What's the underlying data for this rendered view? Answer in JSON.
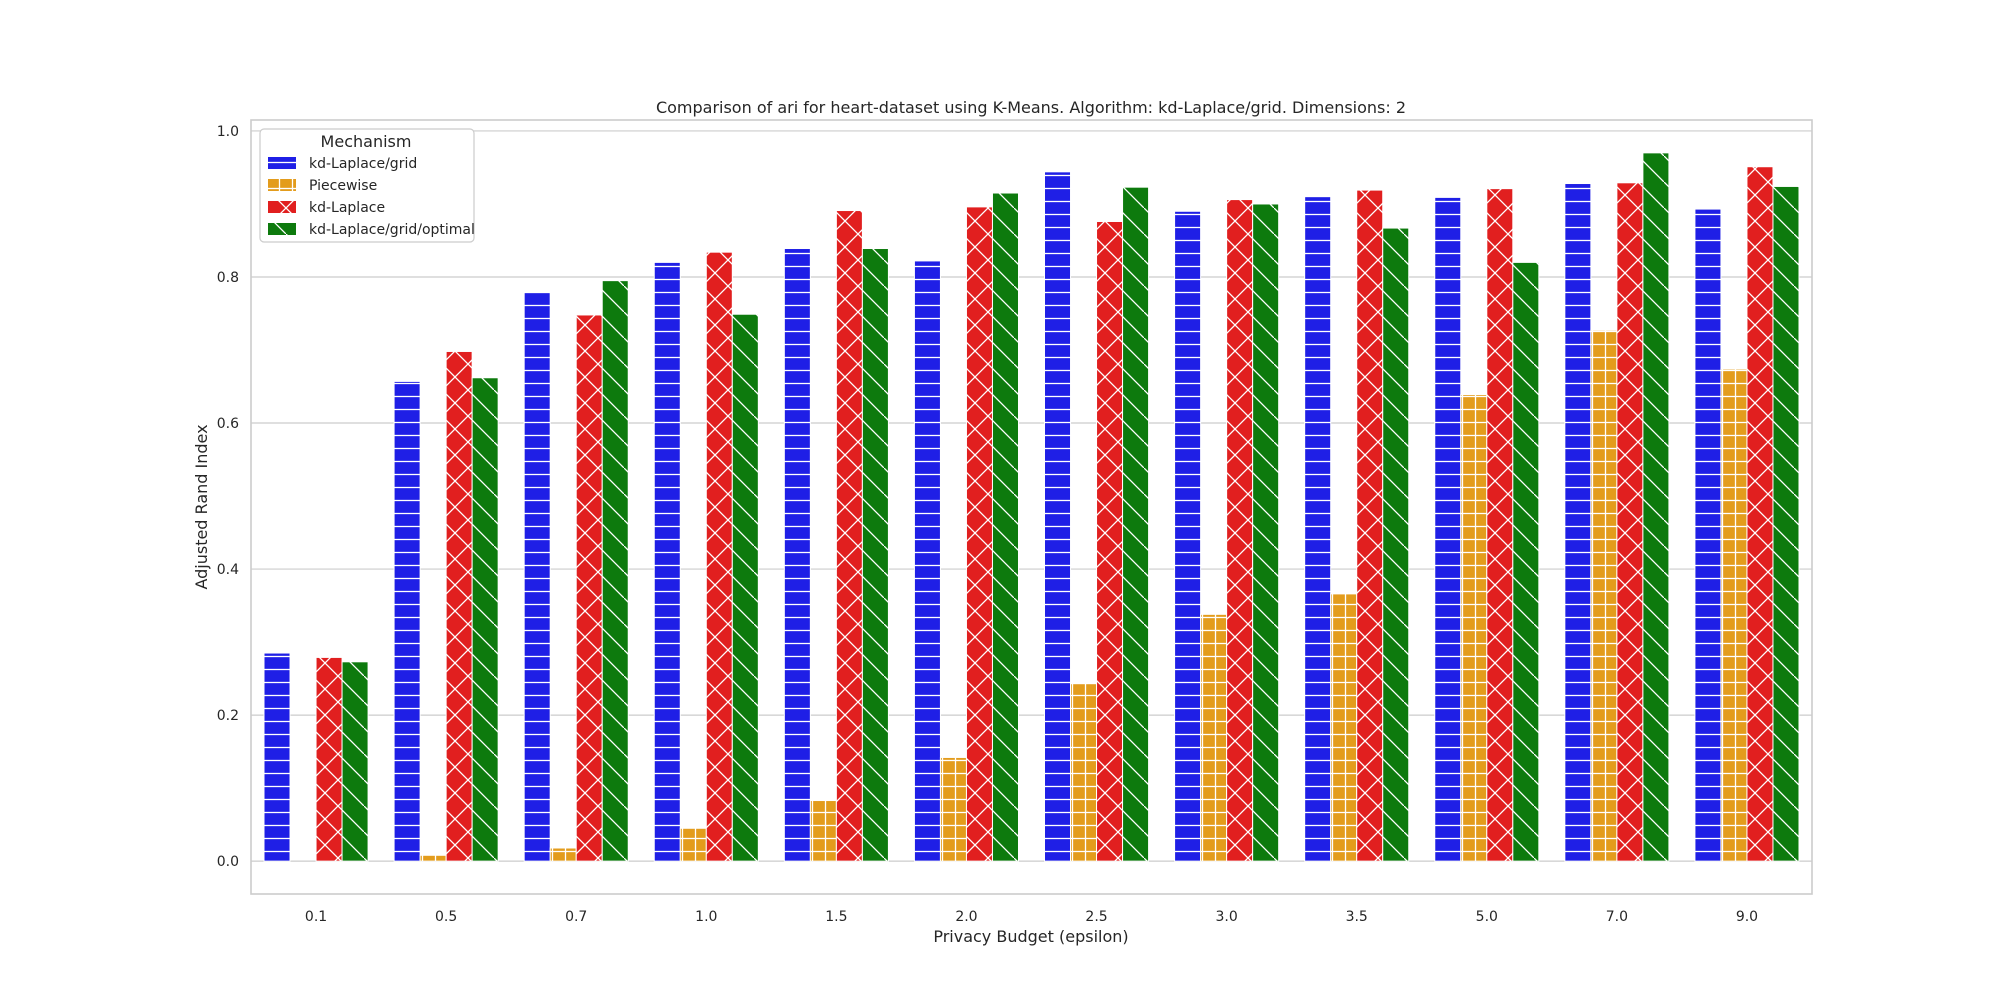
{
  "chart_data": {
    "type": "bar",
    "title": "Comparison of ari for heart-dataset using K-Means. Algorithm: kd-Laplace/grid. Dimensions: 2",
    "xlabel": "Privacy Budget (epsilon)",
    "ylabel": "Adjusted Rand Index",
    "ylim": [
      -0.045,
      1.015
    ],
    "yticks": [
      "0.0",
      "0.2",
      "0.4",
      "0.6",
      "0.8",
      "1.0"
    ],
    "ytick_values": [
      0.0,
      0.2,
      0.4,
      0.6,
      0.8,
      1.0
    ],
    "grid": "horizontal",
    "legend_title": "Mechanism",
    "legend_position": "top-left",
    "categories": [
      "0.1",
      "0.5",
      "0.7",
      "1.0",
      "1.5",
      "2.0",
      "2.5",
      "3.0",
      "3.5",
      "5.0",
      "7.0",
      "9.0"
    ],
    "series": [
      {
        "name": "kd-Laplace/grid",
        "color": "#1f1fe6",
        "hatch": "horizontal",
        "values": [
          0.285,
          0.657,
          0.78,
          0.82,
          0.839,
          0.822,
          0.944,
          0.89,
          0.91,
          0.909,
          0.928,
          0.893
        ]
      },
      {
        "name": "Piecewise",
        "color": "#e39c1c",
        "hatch": "grid",
        "values": [
          0.0,
          0.008,
          0.018,
          0.045,
          0.083,
          0.142,
          0.243,
          0.338,
          0.366,
          0.639,
          0.727,
          0.674
        ]
      },
      {
        "name": "kd-Laplace",
        "color": "#e11f1f",
        "hatch": "cross",
        "values": [
          0.279,
          0.698,
          0.748,
          0.834,
          0.891,
          0.896,
          0.876,
          0.906,
          0.919,
          0.921,
          0.929,
          0.951
        ]
      },
      {
        "name": "kd-Laplace/grid/optimal",
        "color": "#0d7a0d",
        "hatch": "diagonal",
        "values": [
          0.273,
          0.662,
          0.795,
          0.749,
          0.839,
          0.915,
          0.923,
          0.9,
          0.867,
          0.82,
          0.97,
          0.924
        ]
      }
    ]
  }
}
